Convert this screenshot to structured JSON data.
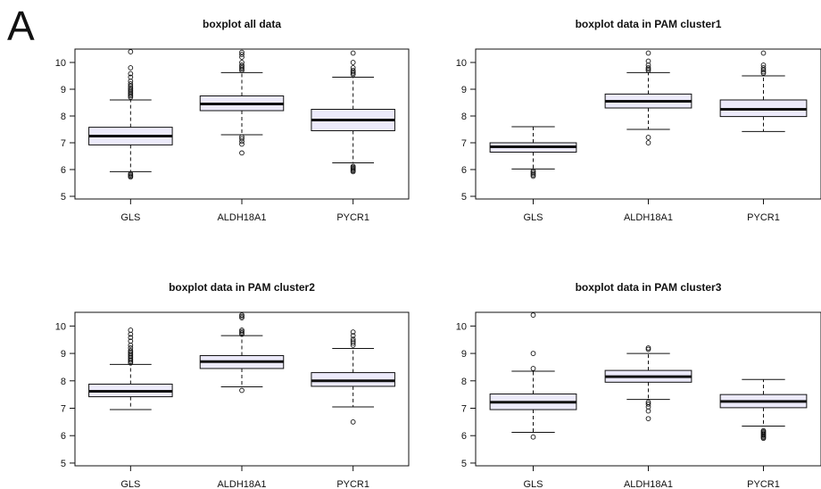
{
  "panel_label": "A",
  "chart_data": [
    {
      "type": "boxplot",
      "title": "boxplot all data",
      "categories": [
        "GLS",
        "ALDH18A1",
        "PYCR1"
      ],
      "ylim": [
        4.9,
        10.5
      ],
      "yticks": [
        5,
        6,
        7,
        8,
        9,
        10
      ],
      "boxes": [
        {
          "name": "GLS",
          "whisker_low": 5.92,
          "q1": 6.92,
          "median": 7.25,
          "q3": 7.58,
          "whisker_high": 8.6,
          "outliers": [
            5.72,
            5.76,
            5.8,
            5.84,
            8.7,
            8.75,
            8.8,
            8.85,
            8.9,
            8.95,
            9.0,
            9.05,
            9.12,
            9.2,
            9.3,
            9.45,
            9.58,
            9.8,
            10.4
          ]
        },
        {
          "name": "ALDH18A1",
          "whisker_low": 7.3,
          "q1": 8.2,
          "median": 8.45,
          "q3": 8.75,
          "whisker_high": 9.62,
          "outliers": [
            6.62,
            6.95,
            7.05,
            7.15,
            7.22,
            9.7,
            9.75,
            9.8,
            9.85,
            9.9,
            10.0,
            10.2,
            10.3,
            10.38
          ]
        },
        {
          "name": "PYCR1",
          "whisker_low": 6.25,
          "q1": 7.45,
          "median": 7.85,
          "q3": 8.25,
          "whisker_high": 9.45,
          "outliers": [
            5.92,
            5.96,
            6.0,
            6.04,
            6.08,
            6.12,
            9.55,
            9.6,
            9.65,
            9.7,
            9.8,
            10.0,
            10.35
          ]
        }
      ]
    },
    {
      "type": "boxplot",
      "title": "boxplot data in PAM cluster1",
      "categories": [
        "GLS",
        "ALDH18A1",
        "PYCR1"
      ],
      "ylim": [
        4.9,
        10.5
      ],
      "yticks": [
        5,
        6,
        7,
        8,
        9,
        10
      ],
      "boxes": [
        {
          "name": "GLS",
          "whisker_low": 6.02,
          "q1": 6.65,
          "median": 6.85,
          "q3": 7.0,
          "whisker_high": 7.6,
          "outliers": [
            5.75,
            5.8,
            5.85,
            5.9,
            5.95
          ]
        },
        {
          "name": "ALDH18A1",
          "whisker_low": 7.5,
          "q1": 8.3,
          "median": 8.55,
          "q3": 8.82,
          "whisker_high": 9.62,
          "outliers": [
            7.0,
            7.2,
            9.7,
            9.75,
            9.8,
            9.9,
            10.05,
            10.35
          ]
        },
        {
          "name": "PYCR1",
          "whisker_low": 7.42,
          "q1": 7.98,
          "median": 8.25,
          "q3": 8.6,
          "whisker_high": 9.5,
          "outliers": [
            9.6,
            9.65,
            9.72,
            9.8,
            9.9,
            10.35
          ]
        }
      ]
    },
    {
      "type": "boxplot",
      "title": "boxplot data in PAM cluster2",
      "categories": [
        "GLS",
        "ALDH18A1",
        "PYCR1"
      ],
      "ylim": [
        4.9,
        10.5
      ],
      "yticks": [
        5,
        6,
        7,
        8,
        9,
        10
      ],
      "boxes": [
        {
          "name": "GLS",
          "whisker_low": 6.95,
          "q1": 7.42,
          "median": 7.62,
          "q3": 7.88,
          "whisker_high": 8.6,
          "outliers": [
            8.65,
            8.7,
            8.75,
            8.8,
            8.85,
            8.9,
            8.95,
            9.0,
            9.05,
            9.1,
            9.2,
            9.3,
            9.45,
            9.58,
            9.7,
            9.85
          ]
        },
        {
          "name": "ALDH18A1",
          "whisker_low": 7.78,
          "q1": 8.45,
          "median": 8.7,
          "q3": 8.92,
          "whisker_high": 9.65,
          "outliers": [
            7.65,
            9.7,
            9.75,
            9.8,
            9.85,
            10.3,
            10.35,
            10.4
          ]
        },
        {
          "name": "PYCR1",
          "whisker_low": 7.05,
          "q1": 7.8,
          "median": 8.0,
          "q3": 8.3,
          "whisker_high": 9.18,
          "outliers": [
            6.5,
            9.3,
            9.38,
            9.45,
            9.52,
            9.65,
            9.78
          ]
        }
      ]
    },
    {
      "type": "boxplot",
      "title": "boxplot data in PAM cluster3",
      "categories": [
        "GLS",
        "ALDH18A1",
        "PYCR1"
      ],
      "ylim": [
        4.9,
        10.5
      ],
      "yticks": [
        5,
        6,
        7,
        8,
        9,
        10
      ],
      "boxes": [
        {
          "name": "GLS",
          "whisker_low": 6.12,
          "q1": 6.95,
          "median": 7.22,
          "q3": 7.52,
          "whisker_high": 8.35,
          "outliers": [
            5.95,
            8.45,
            9.0,
            10.4
          ]
        },
        {
          "name": "ALDH18A1",
          "whisker_low": 7.32,
          "q1": 7.95,
          "median": 8.15,
          "q3": 8.38,
          "whisker_high": 9.0,
          "outliers": [
            6.62,
            6.9,
            7.05,
            7.15,
            7.22,
            9.15,
            9.2
          ]
        },
        {
          "name": "PYCR1",
          "whisker_low": 6.35,
          "q1": 7.02,
          "median": 7.25,
          "q3": 7.5,
          "whisker_high": 8.05,
          "outliers": [
            5.9,
            5.94,
            5.98,
            6.02,
            6.06,
            6.1,
            6.14,
            6.18
          ]
        }
      ]
    }
  ],
  "colors": {
    "box_fill": "#eceafa",
    "line": "#111111"
  }
}
